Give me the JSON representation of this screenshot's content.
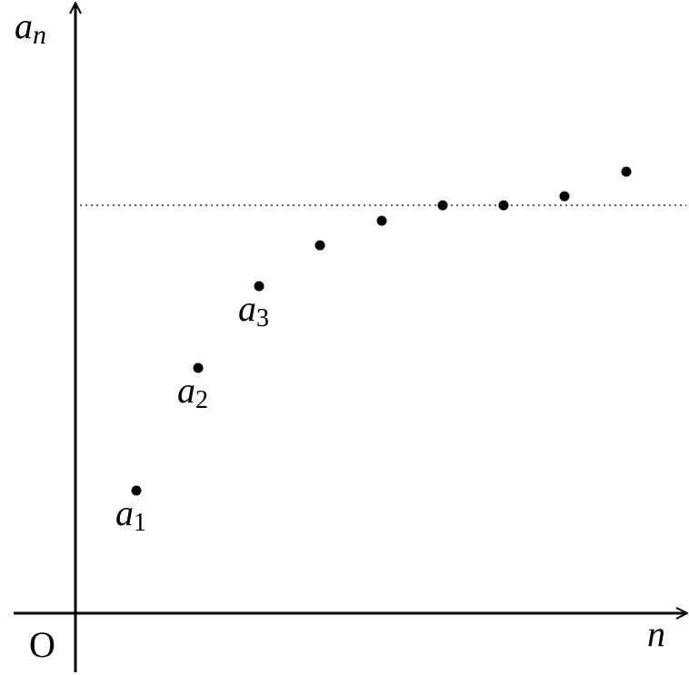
{
  "axes": {
    "y_label": {
      "base": "a",
      "sub": "n"
    },
    "x_label": "n",
    "origin": "O"
  },
  "point_labels": [
    {
      "base": "a",
      "sub": "1"
    },
    {
      "base": "a",
      "sub": "2"
    },
    {
      "base": "a",
      "sub": "3"
    }
  ]
}
